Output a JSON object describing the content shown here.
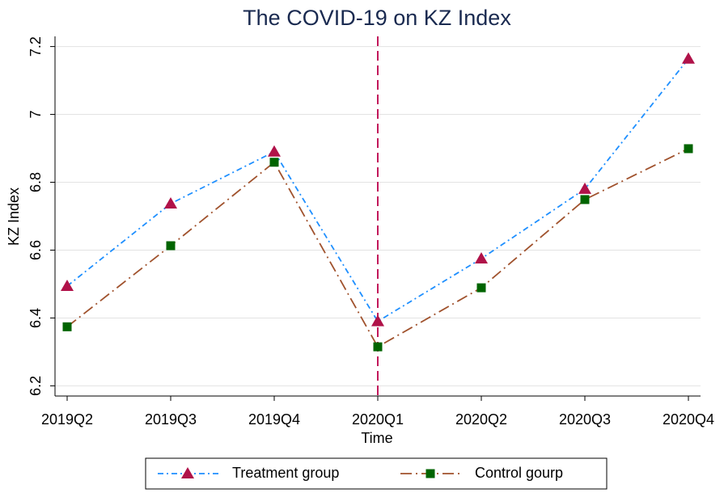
{
  "chart_data": {
    "type": "line",
    "title": "The COVID-19 on KZ Index",
    "x_label": "Time",
    "y_label": "KZ Index",
    "categories": [
      "2019Q2",
      "2019Q3",
      "2019Q4",
      "2020Q1",
      "2020Q2",
      "2020Q3",
      "2020Q4"
    ],
    "series": [
      {
        "name": "Treatment group",
        "color": "#1e8fff",
        "marker_color": "#b01249",
        "marker": "triangle",
        "values": [
          6.494,
          6.737,
          6.89,
          6.39,
          6.575,
          6.78,
          7.164
        ]
      },
      {
        "name": "Control gourp",
        "color": "#a0522d",
        "marker_color": "#006400",
        "marker": "square",
        "values": [
          6.374,
          6.613,
          6.859,
          6.315,
          6.489,
          6.749,
          6.899
        ]
      }
    ],
    "ylim": [
      6.17,
      7.23
    ],
    "yticks": [
      6.2,
      6.4,
      6.6,
      6.8,
      7,
      7.2
    ],
    "grid": true,
    "legend": "bottom"
  }
}
